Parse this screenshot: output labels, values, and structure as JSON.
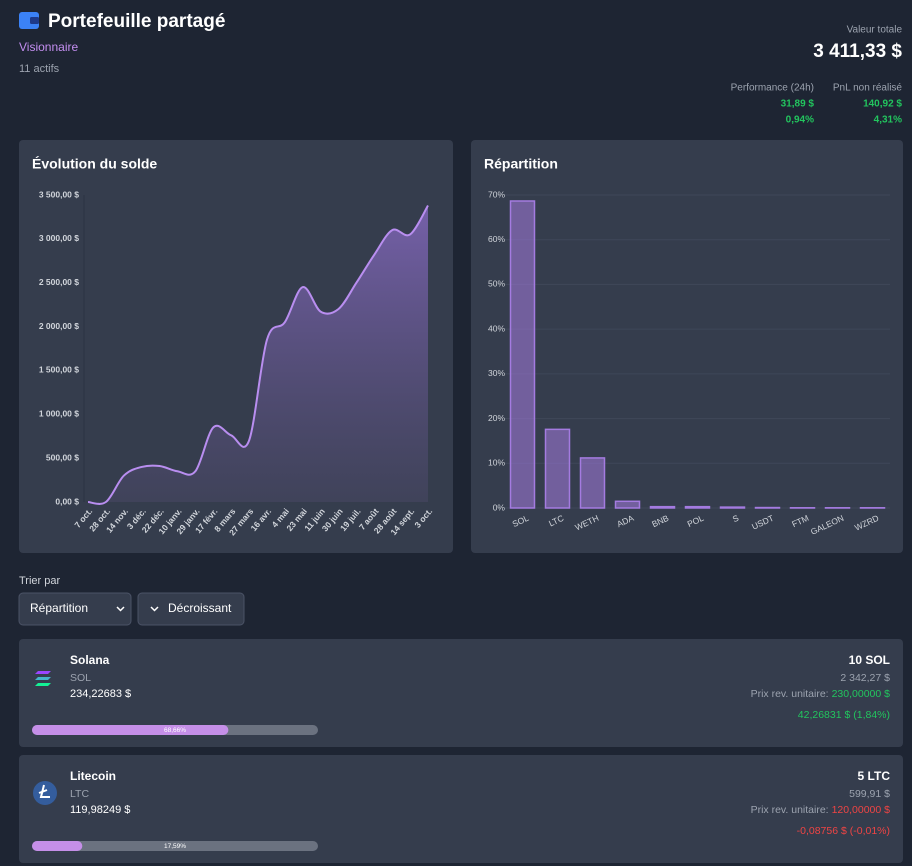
{
  "header": {
    "title": "Portefeuille partagé",
    "tier": "Visionnaire",
    "asset_count": "11 actifs",
    "total_label": "Valeur totale",
    "total_value": "3 411,33 $",
    "perf_label": "Performance (24h)",
    "perf_value": "31,89 $",
    "perf_pct": "0,94%",
    "pnl_label": "PnL non réalisé",
    "pnl_value": "140,92 $",
    "pnl_pct": "4,31%"
  },
  "chart_data": [
    {
      "type": "line",
      "title": "Évolution du solde",
      "color": "#b98ef0",
      "categories": [
        "7 oct.",
        "28 oct.",
        "14 nov.",
        "3 déc.",
        "22 déc.",
        "10 janv.",
        "29 janv.",
        "17 févr.",
        "8 mars",
        "27 mars",
        "16 avr.",
        "4 mai",
        "23 mai",
        "11 juin",
        "30 juin",
        "19 juil.",
        "7 août",
        "28 août",
        "14 sept.",
        "3 oct."
      ],
      "values": [
        0,
        0,
        300,
        400,
        410,
        350,
        350,
        850,
        760,
        700,
        1850,
        2050,
        2450,
        2170,
        2200,
        2500,
        2820,
        3100,
        3050,
        3380
      ],
      "ylim": [
        0,
        3500
      ],
      "yticks": [
        {
          "value": 0,
          "label": "0,00 $"
        },
        {
          "value": 500,
          "label": "500,00 $"
        },
        {
          "value": 1000,
          "label": "1 000,00 $"
        },
        {
          "value": 1500,
          "label": "1 500,00 $"
        },
        {
          "value": 2000,
          "label": "2 000,00 $"
        },
        {
          "value": 2500,
          "label": "2 500,00 $"
        },
        {
          "value": 3000,
          "label": "3 000,00 $"
        },
        {
          "value": 3500,
          "label": "3 500,00 $"
        }
      ]
    },
    {
      "type": "bar",
      "title": "Répartition",
      "color": "#a47be0",
      "categories": [
        "SOL",
        "LTC",
        "WETH",
        "ADA",
        "BNB",
        "POL",
        "S",
        "USDT",
        "FTM",
        "GALEON",
        "WZRD"
      ],
      "values": [
        68.66,
        17.59,
        11.2,
        1.5,
        0.3,
        0.3,
        0.2,
        0.1,
        0.05,
        0.05,
        0.05
      ],
      "ylim": [
        0,
        70
      ],
      "grid": true,
      "yticks": [
        {
          "value": 0,
          "label": "0%"
        },
        {
          "value": 10,
          "label": "10%"
        },
        {
          "value": 20,
          "label": "20%"
        },
        {
          "value": 30,
          "label": "30%"
        },
        {
          "value": 40,
          "label": "40%"
        },
        {
          "value": 50,
          "label": "50%"
        },
        {
          "value": 60,
          "label": "60%"
        },
        {
          "value": 70,
          "label": "70%"
        }
      ]
    }
  ],
  "sort": {
    "label": "Trier par",
    "field": "Répartition",
    "order": "Décroissant"
  },
  "assets": [
    {
      "name": "Solana",
      "symbol": "SOL",
      "price": "234,22683 $",
      "allocation": {
        "value": 68.66,
        "label": "68,66%"
      },
      "quantity": "10 SOL",
      "value": "2 342,27 $",
      "cost_label": "Prix rev. unitaire:",
      "cost": "230,00000 $",
      "pnl": "42,26831 $ (1,84%)",
      "trend": "up"
    },
    {
      "name": "Litecoin",
      "symbol": "LTC",
      "price": "119,98249 $",
      "allocation": {
        "value": 17.59,
        "label": "17,59%"
      },
      "quantity": "5 LTC",
      "value": "599,91 $",
      "cost_label": "Prix rev. unitaire:",
      "cost": "120,00000 $",
      "pnl": "-0,08756 $ (-0,01%)",
      "trend": "down"
    }
  ]
}
